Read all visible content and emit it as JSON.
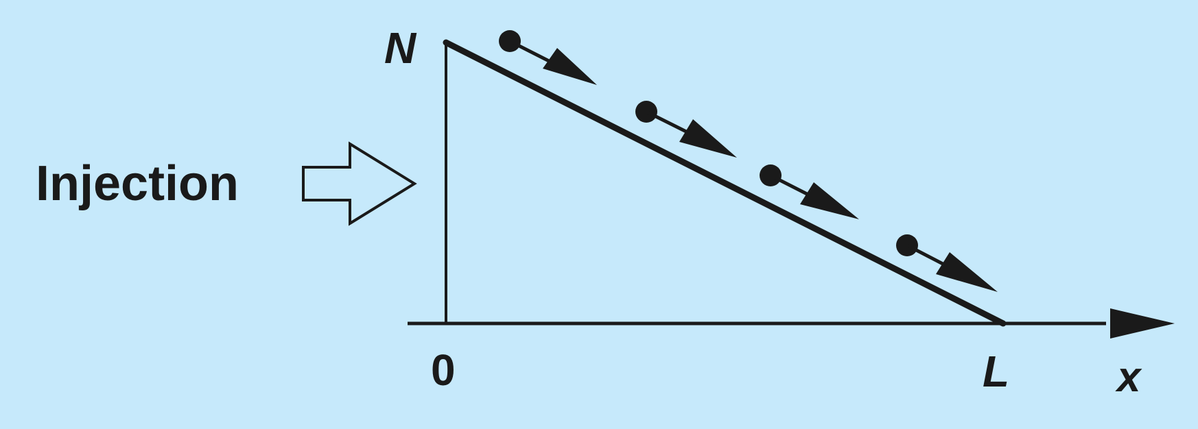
{
  "labels": {
    "injection": "Injection",
    "density_peak": "N",
    "origin": "0",
    "length": "L",
    "axis": "x"
  },
  "colors": {
    "background": "#c6e9fb",
    "ink": "#1a1a1a"
  },
  "particles": {
    "count": 4
  }
}
